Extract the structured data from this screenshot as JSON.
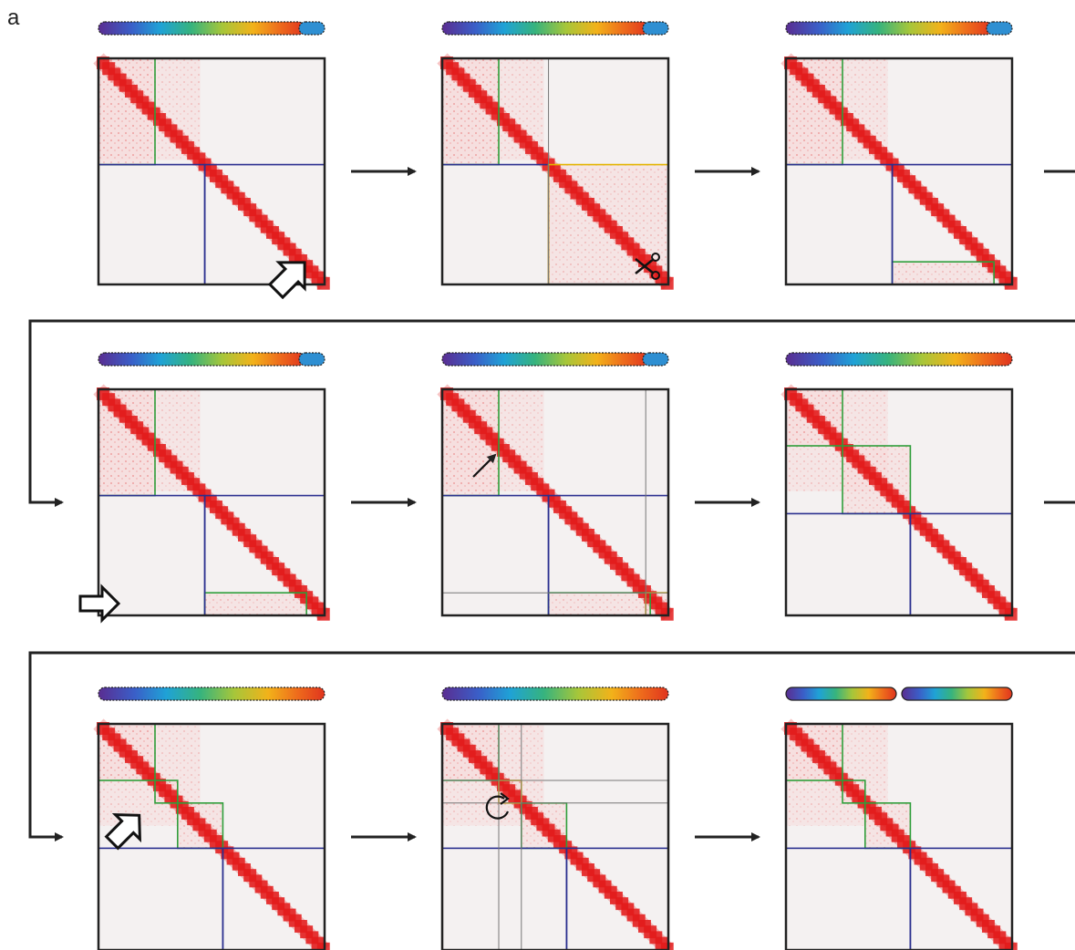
{
  "figure": {
    "panel_label": "a",
    "colors": {
      "frame": "#222222",
      "heat": "#e31b1b",
      "heat_light": "#f7c9c9",
      "background": "#f4f1f1",
      "green_box": "#2e9e3a",
      "blue_box": "#2a2f8f",
      "yellow_box": "#e3b400",
      "gray_line": "#777777",
      "spectrum": [
        "#5a2d91",
        "#3a5fc8",
        "#1fa2d6",
        "#36b37e",
        "#a6c63a",
        "#f2b21a",
        "#ee6b1c",
        "#e0341e"
      ],
      "tail_blue": "#2e8fd2"
    },
    "icons": {
      "arrow": "right-arrow-icon",
      "elbow": "elbow-arrow-icon",
      "block_arrow": "block-arrow-icon",
      "scissors": "scissors-icon",
      "pointer": "pointer-arrow-icon",
      "rotate": "rotate-icon"
    }
  }
}
